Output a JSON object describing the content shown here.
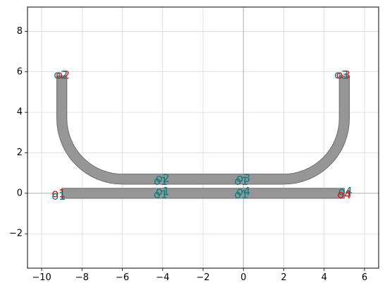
{
  "chart_data": {
    "type": "layout-plot",
    "xlim": [
      -10.7,
      6.7
    ],
    "ylim": [
      -3.7,
      9.2
    ],
    "x_ticks": [
      -10,
      -8,
      -6,
      -4,
      -2,
      0,
      2,
      4,
      6
    ],
    "y_ticks": [
      -2,
      0,
      2,
      4,
      6,
      8
    ],
    "x_tick_labels": [
      "−10",
      "−8",
      "−6",
      "−4",
      "−2",
      "0",
      "2",
      "4",
      "6"
    ],
    "y_tick_labels": [
      "−2",
      "0",
      "2",
      "4",
      "6",
      "8"
    ],
    "grid": true,
    "zero_lines": true,
    "waveguide_width": 0.5,
    "colors": {
      "waveguide_fill": "#969696",
      "waveguide_edge": "#6e6e6e",
      "label_teal": "#008080",
      "label_red": "#ff0000",
      "grid": "#d9d9d9",
      "axis_zero": "#b0b0b0"
    },
    "waveguides": [
      {
        "name": "straight",
        "kind": "straight",
        "from": [
          -9.0,
          0.0
        ],
        "to": [
          5.0,
          0.0
        ]
      },
      {
        "name": "u-bend",
        "kind": "u-bend",
        "left_top": [
          -9.0,
          5.8
        ],
        "right_top": [
          5.0,
          5.8
        ],
        "bottom_y": 0.7,
        "radius": 3.0
      }
    ],
    "port_labels": [
      {
        "text": "o2",
        "x": -8.95,
        "y": 5.85,
        "color": "red"
      },
      {
        "text": "o2",
        "x": -9.05,
        "y": 5.85,
        "color": "teal"
      },
      {
        "text": "o3",
        "x": 4.95,
        "y": 5.85,
        "color": "red"
      },
      {
        "text": "o3",
        "x": 4.85,
        "y": 5.85,
        "color": "teal"
      },
      {
        "text": "o2",
        "x": -4.0,
        "y": 0.75,
        "color": "teal"
      },
      {
        "text": "o1",
        "x": -4.1,
        "y": 0.6,
        "color": "teal"
      },
      {
        "text": "o3",
        "x": 0.0,
        "y": 0.75,
        "color": "teal"
      },
      {
        "text": "o1",
        "x": -0.1,
        "y": 0.6,
        "color": "teal"
      },
      {
        "text": "o1",
        "x": -9.15,
        "y": 0.0,
        "color": "red"
      },
      {
        "text": "o1",
        "x": -9.15,
        "y": -0.12,
        "color": "teal"
      },
      {
        "text": "o1",
        "x": -4.0,
        "y": 0.1,
        "color": "teal"
      },
      {
        "text": "o1",
        "x": -4.1,
        "y": -0.05,
        "color": "teal"
      },
      {
        "text": "o4",
        "x": 0.0,
        "y": 0.1,
        "color": "teal"
      },
      {
        "text": "o1",
        "x": -0.1,
        "y": -0.05,
        "color": "teal"
      },
      {
        "text": "o4",
        "x": 5.05,
        "y": 0.1,
        "color": "teal"
      },
      {
        "text": "o4",
        "x": 5.0,
        "y": -0.05,
        "color": "red"
      }
    ]
  }
}
